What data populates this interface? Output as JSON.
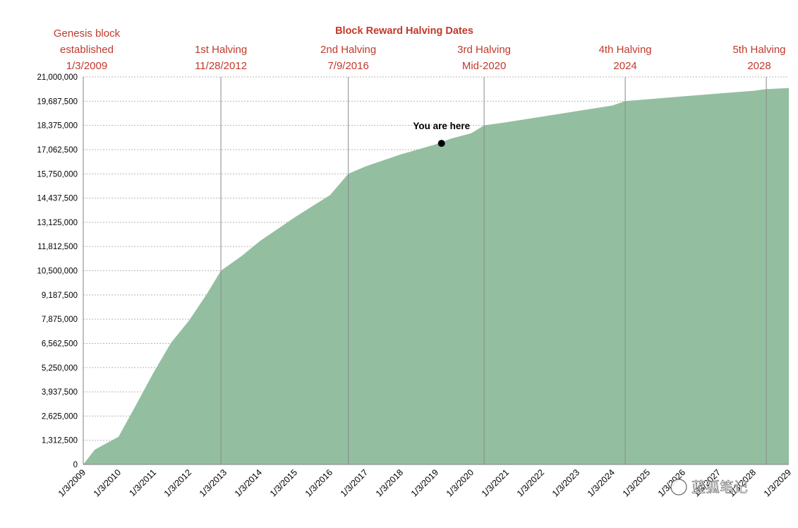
{
  "chart_data": {
    "type": "area",
    "title": "Block Reward Halving Dates",
    "xlabel": "",
    "ylabel": "",
    "ylim": [
      0,
      21000000
    ],
    "yticks": [
      "0",
      "1,312,500",
      "2,625,000",
      "3,937,500",
      "5,250,000",
      "6,562,500",
      "7,875,000",
      "9,187,500",
      "10,500,000",
      "11,812,500",
      "13,125,000",
      "14,437,500",
      "15,750,000",
      "17,062,500",
      "18,375,000",
      "19,687,500",
      "21,000,000"
    ],
    "xtick_labels": [
      "1/3/2009",
      "1/3/2010",
      "1/3/2011",
      "1/3/2012",
      "1/3/2013",
      "1/3/2014",
      "1/3/2015",
      "1/3/2016",
      "1/3/2017",
      "1/3/2018",
      "1/3/2019",
      "1/3/2020",
      "1/3/2021",
      "1/3/2022",
      "1/3/2023",
      "1/3/2024",
      "1/3/2025",
      "1/3/2026",
      "1/3/2027",
      "1/3/2028",
      "1/3/2029"
    ],
    "grid": true,
    "color": "#93bfa0",
    "series": [
      {
        "x": [
          "2009-01-03",
          "2009-05-01",
          "2009-09-01",
          "2010-01-03",
          "2010-07-01",
          "2011-01-03",
          "2011-07-01",
          "2012-01-03",
          "2012-07-01",
          "2012-11-28",
          "2013-07-01",
          "2014-01-03",
          "2015-01-03",
          "2016-01-03",
          "2016-07-09",
          "2017-01-03",
          "2018-01-03",
          "2019-01-03",
          "2019-06-01",
          "2020-01-03",
          "2020-05-15",
          "2021-01-03",
          "2022-01-03",
          "2023-01-03",
          "2024-01-03",
          "2024-05-15",
          "2025-01-03",
          "2026-01-03",
          "2027-01-03",
          "2028-01-03",
          "2028-05-15",
          "2029-01-03"
        ],
        "y": [
          0,
          800000,
          1150000,
          1500000,
          3200000,
          5000000,
          6600000,
          7800000,
          9200000,
          10500000,
          11300000,
          12100000,
          13400000,
          14600000,
          15750000,
          16150000,
          16800000,
          17350000,
          17650000,
          17950000,
          18375000,
          18550000,
          18850000,
          19150000,
          19450000,
          19687500,
          19790000,
          19950000,
          20100000,
          20250000,
          20343750,
          20400000
        ]
      }
    ],
    "halvings": [
      {
        "date": "2009-01-03",
        "lines": [
          "Genesis block",
          "established",
          "1/3/2009"
        ]
      },
      {
        "date": "2012-11-28",
        "lines": [
          "1st Halving",
          "11/28/2012"
        ]
      },
      {
        "date": "2016-07-09",
        "lines": [
          "2nd Halving",
          "7/9/2016"
        ]
      },
      {
        "date": "2020-05-15",
        "lines": [
          "3rd Halving",
          "Mid-2020"
        ]
      },
      {
        "date": "2024-05-15",
        "lines": [
          "4th Halving",
          "2024"
        ]
      },
      {
        "date": "2028-05-15",
        "lines": [
          "5th Halving",
          "2028"
        ]
      }
    ],
    "marker": {
      "date": "2019-03-01",
      "value": 17400000,
      "label": "You are here"
    }
  },
  "watermark": "蓝狐笔记"
}
